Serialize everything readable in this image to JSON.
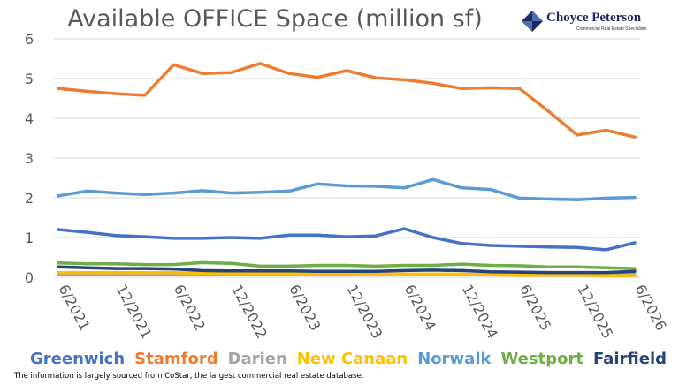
{
  "logo": {
    "name": "Choyce Peterson",
    "tagline": "Commercial Real Estate Specialists",
    "colors": [
      "#1f2a5c",
      "#4a6fb5"
    ]
  },
  "chart_data": {
    "type": "line",
    "title": "Available OFFICE Space (million sf)",
    "xlabel": "",
    "ylabel": "",
    "ylim": [
      0,
      6
    ],
    "yticks": [
      "0",
      "1",
      "2",
      "3",
      "4",
      "5",
      "6"
    ],
    "xtick_labels": [
      "6/2021",
      "12/2021",
      "6/2022",
      "12/2022",
      "6/2023",
      "12/2023",
      "6/2024",
      "12/2024",
      "6/2025",
      "12/2025",
      "6/2026"
    ],
    "grid": "horizontal",
    "legend_position": "bottom",
    "x": [
      "6/2021",
      "9/2021",
      "12/2021",
      "3/2022",
      "6/2022",
      "9/2022",
      "12/2022",
      "3/2023",
      "6/2023",
      "9/2023",
      "12/2023",
      "3/2024",
      "6/2024",
      "9/2024",
      "12/2024",
      "3/2025",
      "6/2025",
      "9/2025",
      "12/2025",
      "3/2026",
      "6/2026"
    ],
    "series": [
      {
        "name": "Greenwich",
        "color": "#4472c4",
        "values": [
          1.2,
          1.13,
          1.05,
          1.02,
          0.98,
          0.98,
          1.0,
          0.98,
          1.06,
          1.06,
          1.02,
          1.04,
          1.22,
          1.0,
          0.85,
          0.8,
          0.78,
          0.76,
          0.75,
          0.69,
          0.87
        ]
      },
      {
        "name": "Stamford",
        "color": "#ed7d31",
        "values": [
          4.75,
          4.68,
          4.62,
          4.58,
          5.35,
          5.13,
          5.15,
          5.38,
          5.13,
          5.03,
          5.2,
          5.02,
          4.97,
          4.88,
          4.75,
          4.77,
          4.75,
          4.18,
          3.58,
          3.7,
          3.53
        ]
      },
      {
        "name": "Darien",
        "color": "#a5a5a5",
        "values": [
          0.07,
          0.07,
          0.07,
          0.07,
          0.07,
          0.07,
          0.07,
          0.07,
          0.07,
          0.07,
          0.07,
          0.07,
          0.07,
          0.07,
          0.07,
          0.07,
          0.07,
          0.07,
          0.07,
          0.07,
          0.07
        ]
      },
      {
        "name": "New Canaan",
        "color": "#ffc000",
        "values": [
          0.12,
          0.12,
          0.12,
          0.12,
          0.12,
          0.1,
          0.1,
          0.09,
          0.09,
          0.09,
          0.09,
          0.08,
          0.08,
          0.08,
          0.08,
          0.06,
          0.05,
          0.05,
          0.05,
          0.04,
          0.04
        ]
      },
      {
        "name": "Norwalk",
        "color": "#5b9bd5",
        "values": [
          2.05,
          2.17,
          2.12,
          2.08,
          2.12,
          2.18,
          2.12,
          2.14,
          2.17,
          2.35,
          2.3,
          2.29,
          2.25,
          2.46,
          2.25,
          2.21,
          1.99,
          1.97,
          1.95,
          1.99,
          2.01
        ]
      },
      {
        "name": "Westport",
        "color": "#70ad47",
        "values": [
          0.36,
          0.34,
          0.34,
          0.32,
          0.32,
          0.37,
          0.35,
          0.28,
          0.28,
          0.3,
          0.3,
          0.28,
          0.3,
          0.3,
          0.33,
          0.3,
          0.29,
          0.26,
          0.26,
          0.24,
          0.22
        ]
      },
      {
        "name": "Fairfield",
        "color": "#264478",
        "values": [
          0.26,
          0.24,
          0.22,
          0.22,
          0.21,
          0.17,
          0.16,
          0.16,
          0.16,
          0.15,
          0.15,
          0.15,
          0.17,
          0.18,
          0.17,
          0.14,
          0.13,
          0.12,
          0.12,
          0.12,
          0.15
        ]
      }
    ]
  },
  "footnote": "The information is largely sourced from CoStar, the largest commercial real estate database."
}
